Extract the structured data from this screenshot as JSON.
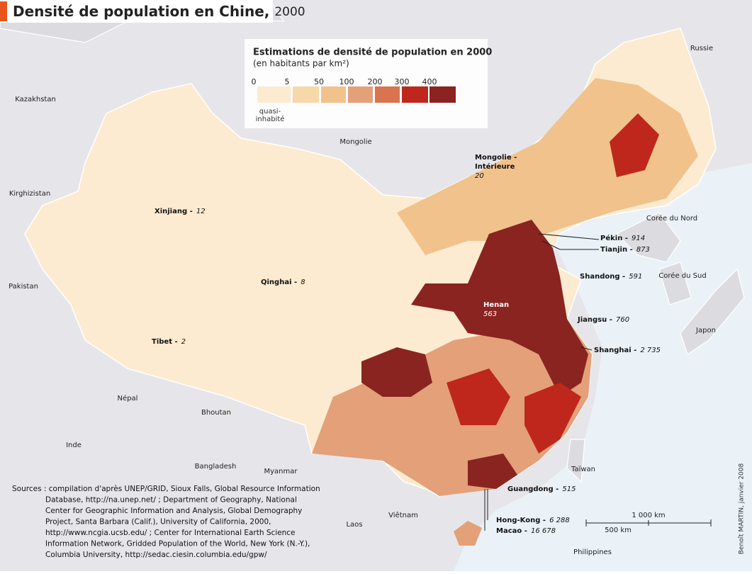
{
  "header": {
    "title": "Densité de population en Chine,",
    "year": "2000"
  },
  "legend": {
    "title": "Estimations de densité de population en 2000",
    "subtitle": "(en habitants par km²)",
    "ticks": [
      0,
      5,
      50,
      100,
      200,
      300,
      400
    ],
    "colors": [
      "#fcebd0",
      "#f7d8a8",
      "#f1c28c",
      "#e3a079",
      "#d97350",
      "#bf271c",
      "#8a2420"
    ],
    "note": [
      "quasi-",
      "inhabité"
    ]
  },
  "countries": [
    "Kazakhstan",
    "Russie",
    "Mongolie",
    "Kirghizistan",
    "Pakistan",
    "Népal",
    "Bhoutan",
    "Inde",
    "Bangladesh",
    "Myanmar",
    "Viêtnam",
    "Laos",
    "Taïwan",
    "Philippines",
    "Japon",
    "Corée du Nord",
    "Corée du Sud"
  ],
  "regions": [
    {
      "name": "Xinjiang -",
      "density": 12
    },
    {
      "name": "Qinghai -",
      "density": 8
    },
    {
      "name": "Tibet -",
      "density": 2
    },
    {
      "name": [
        "Mongolie -",
        "Intérieure"
      ],
      "density": 20
    },
    {
      "name": "Pékin -",
      "density": 914
    },
    {
      "name": "Tianjin -",
      "density": 873
    },
    {
      "name": "Shandong -",
      "density": 591
    },
    {
      "name": "Henan",
      "density": 563
    },
    {
      "name": "Jiangsu -",
      "density": 760
    },
    {
      "name": "Shanghai -",
      "density": "2 735"
    },
    {
      "name": "Guangdong -",
      "density": 515
    },
    {
      "name": "Hong-Kong -",
      "density": "6 288"
    },
    {
      "name": "Macao -",
      "density": "16 678"
    }
  ],
  "sources": [
    "Sources : compilation d'après UNEP/GRID, Sioux Falls, Global Resource Information",
    "Database, http://na.unep.net/ ; Department of Geography, National",
    "Center for Geographic Information and Analysis,  Global Demography",
    "Project, Santa Barbara (Calif.), University of California, 2000,",
    "http://www.ncgia.ucsb.edu/ ; Center for International Earth Science",
    "Information Network, Gridded Population of the World, New York (N.-Y.),",
    "Columbia University, http://sedac.ciesin.columbia.edu/gpw/"
  ],
  "scale": {
    "long": "1 000 km",
    "short": "500 km"
  },
  "credit": "Benoît MARTIN, janvier 2008"
}
